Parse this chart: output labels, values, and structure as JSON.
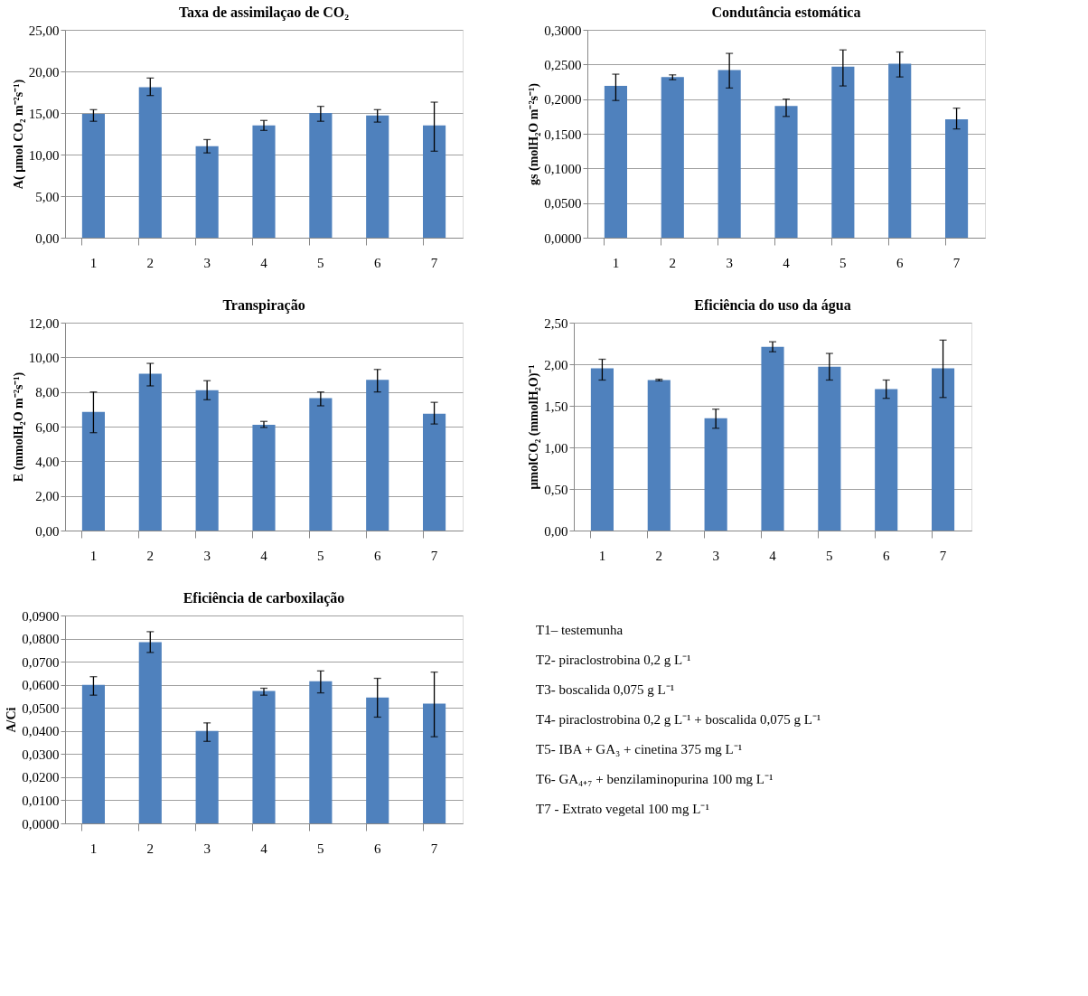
{
  "chart_data": [
    {
      "type": "bar",
      "title": "Taxa de assimilaçao de CO₂",
      "ylabel": "A( µmol CO₂ m⁻²s⁻¹)",
      "categories": [
        "1",
        "2",
        "3",
        "4",
        "5",
        "6",
        "7"
      ],
      "color": "#4f81bd",
      "grid": "y",
      "values": [
        14.9,
        18.1,
        11.0,
        13.5,
        15.0,
        14.7,
        13.5
      ],
      "errors": [
        [
          14.0,
          15.4
        ],
        [
          17.1,
          19.2
        ],
        [
          10.2,
          11.8
        ],
        [
          12.9,
          14.1
        ],
        [
          14.0,
          15.8
        ],
        [
          13.9,
          15.4
        ],
        [
          10.4,
          16.3
        ]
      ],
      "ylim": [
        0,
        25
      ],
      "yticks": [
        {
          "value": 0,
          "label": "0,00"
        },
        {
          "value": 5,
          "label": "5,00"
        },
        {
          "value": 10,
          "label": "10,00"
        },
        {
          "value": 15,
          "label": "15,00"
        },
        {
          "value": 20,
          "label": "20,00"
        },
        {
          "value": 25,
          "label": "25,00"
        }
      ]
    },
    {
      "type": "bar",
      "title": "Condutância estomática",
      "ylabel": "gs (molH₂O m⁻²s⁻¹)",
      "categories": [
        "1",
        "2",
        "3",
        "4",
        "5",
        "6",
        "7"
      ],
      "color": "#4f81bd",
      "grid": "y",
      "values": [
        0.219,
        0.232,
        0.242,
        0.19,
        0.247,
        0.251,
        0.171
      ],
      "errors": [
        [
          0.198,
          0.236
        ],
        [
          0.228,
          0.235
        ],
        [
          0.216,
          0.266
        ],
        [
          0.175,
          0.2
        ],
        [
          0.219,
          0.271
        ],
        [
          0.232,
          0.268
        ],
        [
          0.157,
          0.187
        ]
      ],
      "ylim": [
        0,
        0.3
      ],
      "yticks": [
        {
          "value": 0,
          "label": "0,0000"
        },
        {
          "value": 0.05,
          "label": "0,0500"
        },
        {
          "value": 0.1,
          "label": "0,1000"
        },
        {
          "value": 0.15,
          "label": "0,1500"
        },
        {
          "value": 0.2,
          "label": "0,2000"
        },
        {
          "value": 0.25,
          "label": "0,2500"
        },
        {
          "value": 0.3,
          "label": "0,3000"
        }
      ]
    },
    {
      "type": "bar",
      "title": "Transpiração",
      "ylabel": "E (mmolH₂O m⁻²s⁻¹)",
      "categories": [
        "1",
        "2",
        "3",
        "4",
        "5",
        "6",
        "7"
      ],
      "color": "#4f81bd",
      "grid": "y",
      "values": [
        6.85,
        9.05,
        8.1,
        6.1,
        7.65,
        8.7,
        6.75
      ],
      "errors": [
        [
          5.65,
          8.0
        ],
        [
          8.35,
          9.65
        ],
        [
          7.55,
          8.65
        ],
        [
          5.95,
          6.3
        ],
        [
          7.2,
          8.0
        ],
        [
          8.0,
          9.3
        ],
        [
          6.15,
          7.4
        ]
      ],
      "ylim": [
        0,
        12
      ],
      "yticks": [
        {
          "value": 0,
          "label": "0,00"
        },
        {
          "value": 2,
          "label": "2,00"
        },
        {
          "value": 4,
          "label": "4,00"
        },
        {
          "value": 6,
          "label": "6,00"
        },
        {
          "value": 8,
          "label": "8,00"
        },
        {
          "value": 10,
          "label": "10,00"
        },
        {
          "value": 12,
          "label": "12,00"
        }
      ]
    },
    {
      "type": "bar",
      "title": "Eficiência do uso da água",
      "ylabel": "µmolCO₂ (mmolH₂O)⁻¹",
      "categories": [
        "1",
        "2",
        "3",
        "4",
        "5",
        "6",
        "7"
      ],
      "color": "#4f81bd",
      "grid": "y",
      "values": [
        1.95,
        1.81,
        1.35,
        2.21,
        1.97,
        1.7,
        1.95
      ],
      "errors": [
        [
          1.81,
          2.06
        ],
        [
          1.8,
          1.82
        ],
        [
          1.23,
          1.46
        ],
        [
          2.15,
          2.27
        ],
        [
          1.81,
          2.13
        ],
        [
          1.59,
          1.81
        ],
        [
          1.6,
          2.29
        ]
      ],
      "ylim": [
        0,
        2.5
      ],
      "yticks": [
        {
          "value": 0,
          "label": "0,00"
        },
        {
          "value": 0.5,
          "label": "0,50"
        },
        {
          "value": 1,
          "label": "1,00"
        },
        {
          "value": 1.5,
          "label": "1,50"
        },
        {
          "value": 2,
          "label": "2,00"
        },
        {
          "value": 2.5,
          "label": "2,50"
        }
      ]
    },
    {
      "type": "bar",
      "title": "Eficiência de carboxilação",
      "ylabel": "A/Ci",
      "categories": [
        "1",
        "2",
        "3",
        "4",
        "5",
        "6",
        "7"
      ],
      "color": "#4f81bd",
      "grid": "y",
      "values": [
        0.06,
        0.0785,
        0.04,
        0.0573,
        0.0615,
        0.0545,
        0.0518
      ],
      "errors": [
        [
          0.0555,
          0.0635
        ],
        [
          0.074,
          0.083
        ],
        [
          0.0355,
          0.0435
        ],
        [
          0.0555,
          0.0585
        ],
        [
          0.0565,
          0.066
        ],
        [
          0.046,
          0.0628
        ],
        [
          0.0375,
          0.0655
        ]
      ],
      "ylim": [
        0,
        0.09
      ],
      "yticks": [
        {
          "value": 0,
          "label": "0,0000"
        },
        {
          "value": 0.01,
          "label": "0,0100"
        },
        {
          "value": 0.02,
          "label": "0,0200"
        },
        {
          "value": 0.03,
          "label": "0,0300"
        },
        {
          "value": 0.04,
          "label": "0,0400"
        },
        {
          "value": 0.05,
          "label": "0,0500"
        },
        {
          "value": 0.06,
          "label": "0,0600"
        },
        {
          "value": 0.07,
          "label": "0,0700"
        },
        {
          "value": 0.08,
          "label": "0,0800"
        },
        {
          "value": 0.09,
          "label": "0,0900"
        }
      ]
    },
    {
      "type": "other",
      "annotations": [
        "T1– testemunha",
        "T2- piraclostrobina 0,2 g L⁻¹",
        "T3- boscalida 0,075 g L⁻¹",
        "T4- piraclostrobina 0,2 g L⁻¹ + boscalida 0,075 g L⁻¹",
        "T5- IBA + GA₃ + cinetina 375 mg L⁻¹",
        "T6- GA₄₊₇ + benzilaminopurina 100 mg L⁻¹",
        "T7 - Extrato vegetal 100 mg L⁻¹"
      ]
    }
  ]
}
